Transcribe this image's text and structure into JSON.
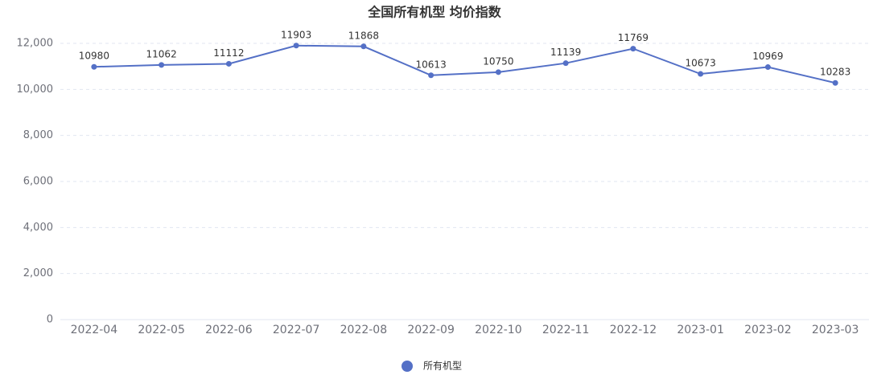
{
  "chart_data": {
    "type": "line",
    "title": "全国所有机型 均价指数",
    "categories": [
      "2022-04",
      "2022-05",
      "2022-06",
      "2022-07",
      "2022-08",
      "2022-09",
      "2022-10",
      "2022-11",
      "2022-12",
      "2023-01",
      "2023-02",
      "2023-03"
    ],
    "series": [
      {
        "name": "所有机型",
        "color": "#5470c6",
        "values": [
          10980,
          11062,
          11112,
          11903,
          11868,
          10613,
          10750,
          11139,
          11769,
          10673,
          10969,
          10283
        ]
      }
    ],
    "ylim": [
      0,
      12000
    ],
    "yticks": [
      0,
      {
        "value": 2000,
        "label": "2,000"
      },
      {
        "value": 4000,
        "label": "4,000"
      },
      {
        "value": 6000,
        "label": "6,000"
      },
      {
        "value": 8000,
        "label": "8,000"
      },
      {
        "value": 10000,
        "label": "10,000"
      },
      {
        "value": 12000,
        "label": "12,000"
      }
    ],
    "grid": true,
    "legend": "bottom"
  }
}
